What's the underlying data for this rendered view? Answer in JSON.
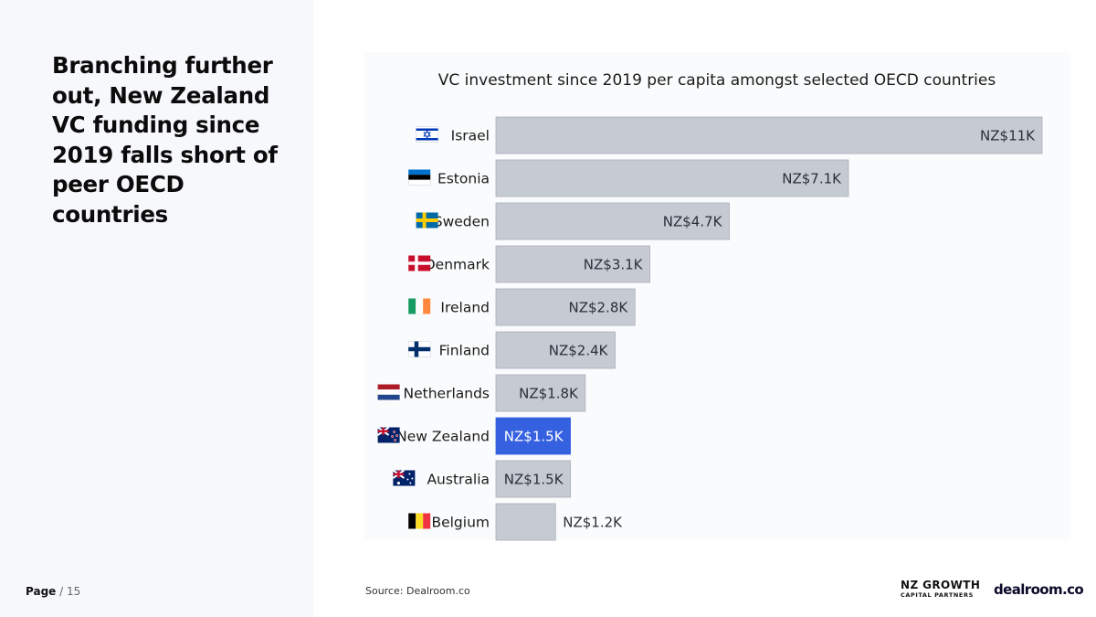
{
  "headline": "Branching further out, New Zealand VC funding since 2019 falls short of peer OECD countries",
  "page": {
    "label": "Page",
    "separator": "/",
    "number": "15"
  },
  "source": "Source:  Dealroom.co",
  "logos": {
    "nzgcp_line1": "NZ GROWTH",
    "nzgcp_line2": "CAPITAL PARTNERS",
    "dealroom": "dealroom.co"
  },
  "colors": {
    "bar": "#c6cad3",
    "bar_highlight": "#3560e0",
    "bar_stroke": "#a9aeb8",
    "label_text": "#2a2f38",
    "highlight_text": "#ffffff"
  },
  "chart_data": {
    "type": "bar",
    "orientation": "horizontal",
    "title": "VC investment since 2019 per capita amongst selected OECD countries",
    "xlabel": "",
    "ylabel": "",
    "xlim": [
      0,
      11000
    ],
    "grid": false,
    "categories": [
      "Israel",
      "Estonia",
      "Sweden",
      "Denmark",
      "Ireland",
      "Finland",
      "Netherlands",
      "New Zealand",
      "Australia",
      "Belgium"
    ],
    "flag_icons": [
      "israel-flag-icon",
      "estonia-flag-icon",
      "sweden-flag-icon",
      "denmark-flag-icon",
      "ireland-flag-icon",
      "finland-flag-icon",
      "netherlands-flag-icon",
      "new-zealand-flag-icon",
      "australia-flag-icon",
      "belgium-flag-icon"
    ],
    "values": [
      11000,
      7100,
      4700,
      3100,
      2800,
      2400,
      1800,
      1500,
      1500,
      1200
    ],
    "data_labels": [
      "NZ$11K",
      "NZ$7.1K",
      "NZ$4.7K",
      "NZ$3.1K",
      "NZ$2.8K",
      "NZ$2.4K",
      "NZ$1.8K",
      "NZ$1.5K",
      "NZ$1.5K",
      "NZ$1.2K"
    ],
    "highlight": "New Zealand"
  }
}
